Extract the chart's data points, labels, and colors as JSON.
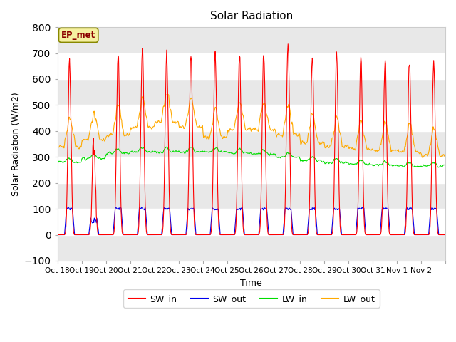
{
  "title": "Solar Radiation",
  "xlabel": "Time",
  "ylabel": "Solar Radiation (W/m2)",
  "ylim": [
    -100,
    800
  ],
  "annotation": "EP_met",
  "legend": [
    "SW_in",
    "SW_out",
    "LW_in",
    "LW_out"
  ],
  "colors": {
    "SW_in": "#ff0000",
    "SW_out": "#0000ee",
    "LW_in": "#00dd00",
    "LW_out": "#ffaa00"
  },
  "xtick_labels": [
    "Oct 18",
    "Oct 19",
    "Oct 20",
    "Oct 21",
    "Oct 22",
    "Oct 23",
    "Oct 24",
    "Oct 25",
    "Oct 26",
    "Oct 27",
    "Oct 28",
    "Oct 29",
    "Oct 30",
    "Oct 31",
    "Nov 1",
    "Nov 2"
  ],
  "yticks": [
    -100,
    0,
    100,
    200,
    300,
    400,
    500,
    600,
    700,
    800
  ],
  "n_days": 16,
  "fig_width": 6.4,
  "fig_height": 4.8,
  "dpi": 100
}
